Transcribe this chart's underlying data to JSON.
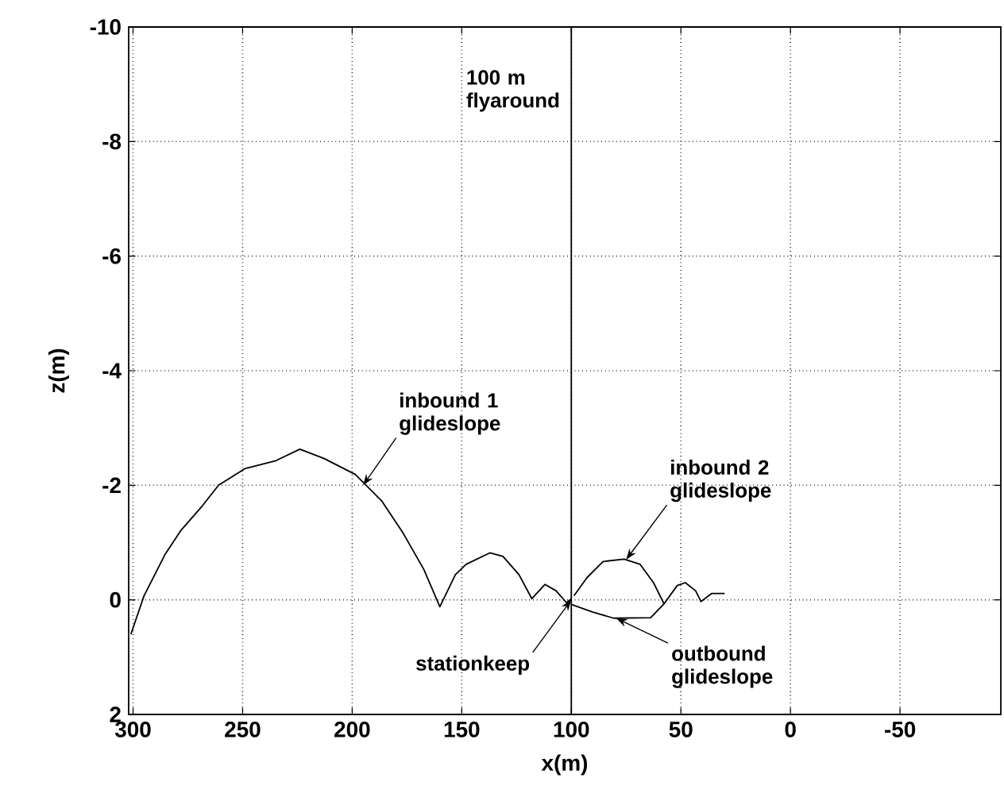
{
  "chart_data": {
    "type": "line",
    "xlabel": "x(m)",
    "ylabel": "z(m)",
    "xlim": [
      302,
      -96
    ],
    "ylim": [
      2,
      -10
    ],
    "xticks": [
      300,
      250,
      200,
      150,
      100,
      50,
      0,
      -50
    ],
    "yticks": [
      -10,
      -8,
      -6,
      -4,
      -2,
      0,
      2
    ],
    "grid": true,
    "line_style": "solid",
    "marker": "none",
    "series": [
      {
        "color": "#000000",
        "x": [
          301,
          295,
          285.3,
          278,
          268.4,
          261,
          249,
          234.8,
          223.9,
          213,
          198.6,
          186.6,
          177,
          167.3,
          160,
          152.9,
          148,
          137.2,
          131.2,
          123.9,
          118,
          112,
          107,
          102.2,
          100
        ],
        "values": [
          0.6,
          -0.07,
          -0.8,
          -1.22,
          -1.64,
          -2.0,
          -2.29,
          -2.43,
          -2.63,
          -2.47,
          -2.19,
          -1.73,
          -1.18,
          -0.53,
          0.12,
          -0.44,
          -0.62,
          -0.82,
          -0.76,
          -0.44,
          -0.02,
          -0.27,
          -0.16,
          0.05,
          -0.02
        ]
      },
      {
        "color": "#000000",
        "x": [
          100,
          90.4,
          80.7,
          63.8,
          57.7,
          51.7,
          48.0,
          43.3,
          40.8,
          36,
          30
        ],
        "values": [
          0.08,
          0.21,
          0.32,
          0.31,
          0.07,
          -0.25,
          -0.3,
          -0.16,
          0.03,
          -0.11,
          -0.11
        ]
      },
      {
        "color": "#000000",
        "x": [
          57.7,
          62.5,
          68.6,
          75.9,
          85.5,
          92.8,
          98.8
        ],
        "values": [
          0.07,
          -0.3,
          -0.62,
          -0.71,
          -0.67,
          -0.39,
          -0.07
        ]
      }
    ],
    "ref_lines": [
      {
        "axis": "x",
        "value": 100,
        "label": "100 m flyaround",
        "color": "#000000"
      }
    ],
    "annotations": [
      {
        "text": "inbound 1 glideslope",
        "x": 195,
        "y": -2
      },
      {
        "text": "stationkeep",
        "x": 100,
        "y": 0
      },
      {
        "text": "inbound 2 glideslope",
        "x": 75,
        "y": -0.7
      },
      {
        "text": "outbound glideslope",
        "x": 79.5,
        "y": 0.32
      }
    ]
  }
}
